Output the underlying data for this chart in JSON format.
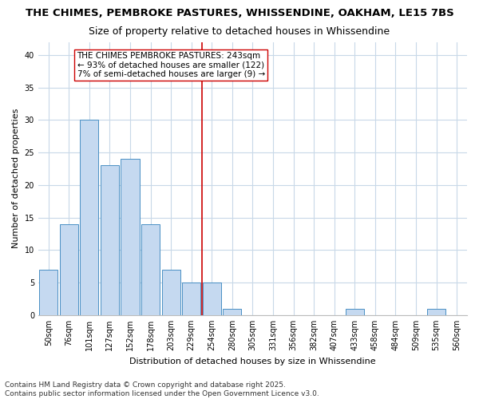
{
  "title1": "THE CHIMES, PEMBROKE PASTURES, WHISSENDINE, OAKHAM, LE15 7BS",
  "title2": "Size of property relative to detached houses in Whissendine",
  "xlabel": "Distribution of detached houses by size in Whissendine",
  "ylabel": "Number of detached properties",
  "categories": [
    "50sqm",
    "76sqm",
    "101sqm",
    "127sqm",
    "152sqm",
    "178sqm",
    "203sqm",
    "229sqm",
    "254sqm",
    "280sqm",
    "305sqm",
    "331sqm",
    "356sqm",
    "382sqm",
    "407sqm",
    "433sqm",
    "458sqm",
    "484sqm",
    "509sqm",
    "535sqm",
    "560sqm"
  ],
  "values": [
    7,
    14,
    30,
    23,
    24,
    14,
    7,
    5,
    5,
    1,
    0,
    0,
    0,
    0,
    0,
    1,
    0,
    0,
    0,
    1,
    0
  ],
  "bar_color": "#c5d9f0",
  "bar_edge_color": "#4a90c4",
  "vline_x": 7.5,
  "vline_color": "#cc0000",
  "annotation_title": "THE CHIMES PEMBROKE PASTURES: 243sqm",
  "annotation_line2": "← 93% of detached houses are smaller (122)",
  "annotation_line3": "7% of semi-detached houses are larger (9) →",
  "ylim": [
    0,
    42
  ],
  "yticks": [
    0,
    5,
    10,
    15,
    20,
    25,
    30,
    35,
    40
  ],
  "footer": "Contains HM Land Registry data © Crown copyright and database right 2025.\nContains public sector information licensed under the Open Government Licence v3.0.",
  "bg_color": "#ffffff",
  "plot_bg_color": "#ffffff",
  "grid_color": "#c8d8e8",
  "title_fontsize": 9.5,
  "subtitle_fontsize": 9,
  "annotation_fontsize": 7.5,
  "axis_fontsize": 8,
  "tick_fontsize": 7,
  "footer_fontsize": 6.5
}
